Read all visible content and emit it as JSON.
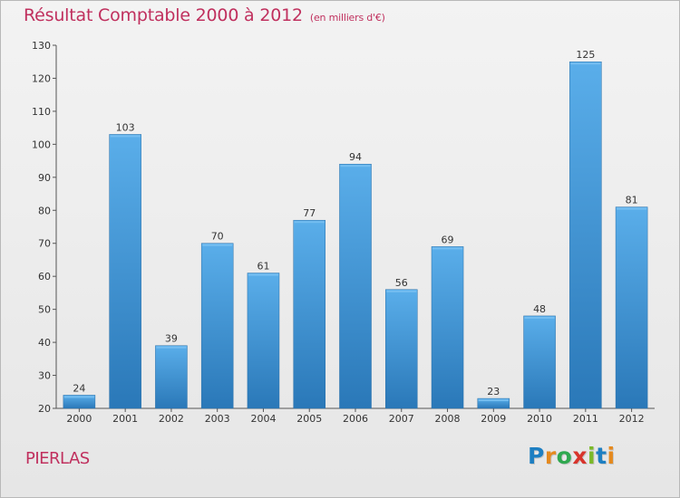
{
  "title": "Résultat Comptable 2000 à 2012",
  "unit_label": "(en milliers d'€)",
  "commune": "PIERLAS",
  "logo": {
    "text": "Proxiti",
    "letters": [
      "P",
      "r",
      "o",
      "x",
      "i",
      "t",
      "i"
    ],
    "colors": [
      "#1e7fc2",
      "#e58a1f",
      "#2fa84f",
      "#d8342c",
      "#7bb929",
      "#1e7fc2",
      "#e58a1f"
    ]
  },
  "colors": {
    "title": "#c0305e",
    "bar_top": "#5aaeea",
    "bar_bottom": "#2a78b8",
    "axis": "#555555"
  },
  "chart_data": {
    "type": "bar",
    "title": "Résultat Comptable 2000 à 2012",
    "ylabel": "en milliers d'€",
    "xlabel": "",
    "categories": [
      "2000",
      "2001",
      "2002",
      "2003",
      "2004",
      "2005",
      "2006",
      "2007",
      "2008",
      "2009",
      "2010",
      "2011",
      "2012"
    ],
    "values": [
      24,
      103,
      39,
      70,
      61,
      77,
      94,
      56,
      69,
      23,
      48,
      125,
      81
    ],
    "ylim": [
      20,
      130
    ],
    "yticks": [
      20,
      30,
      40,
      50,
      60,
      70,
      80,
      90,
      100,
      110,
      120,
      130
    ],
    "grid": false,
    "legend": "none"
  }
}
